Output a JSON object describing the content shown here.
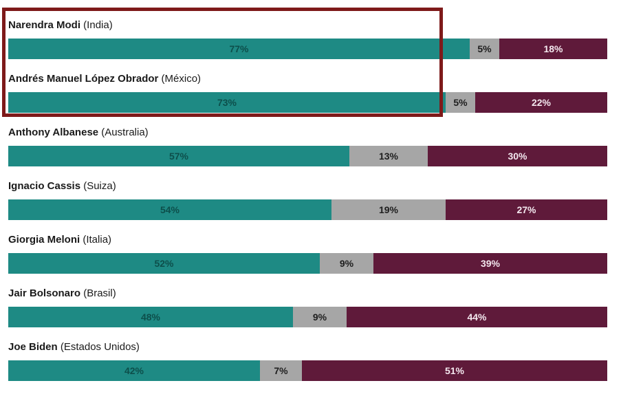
{
  "colors": {
    "approve": "#1e8a84",
    "neutral": "#a6a6a6",
    "disapprove": "#5f1a3a",
    "highlight_box": "#7e1a1a"
  },
  "chart_data": {
    "type": "bar",
    "orientation": "horizontal",
    "stacked": true,
    "categories": [
      {
        "name": "Narendra Modi",
        "country": "(India)"
      },
      {
        "name": "Andrés Manuel López Obrador",
        "country": "(México)"
      },
      {
        "name": "Anthony Albanese",
        "country": "(Australia)"
      },
      {
        "name": "Ignacio Cassis",
        "country": "(Suiza)"
      },
      {
        "name": "Giorgia Meloni",
        "country": "(Italia)"
      },
      {
        "name": "Jair Bolsonaro",
        "country": "(Brasil)"
      },
      {
        "name": "Joe Biden",
        "country": "(Estados Unidos)"
      }
    ],
    "series": [
      {
        "key": "approve",
        "values": [
          77,
          73,
          57,
          54,
          52,
          48,
          42
        ]
      },
      {
        "key": "neutral",
        "values": [
          5,
          5,
          13,
          19,
          9,
          9,
          7
        ]
      },
      {
        "key": "disapprove",
        "values": [
          18,
          22,
          30,
          27,
          39,
          44,
          51
        ]
      }
    ],
    "value_suffix": "%",
    "highlighted_rows": [
      0,
      1
    ]
  }
}
